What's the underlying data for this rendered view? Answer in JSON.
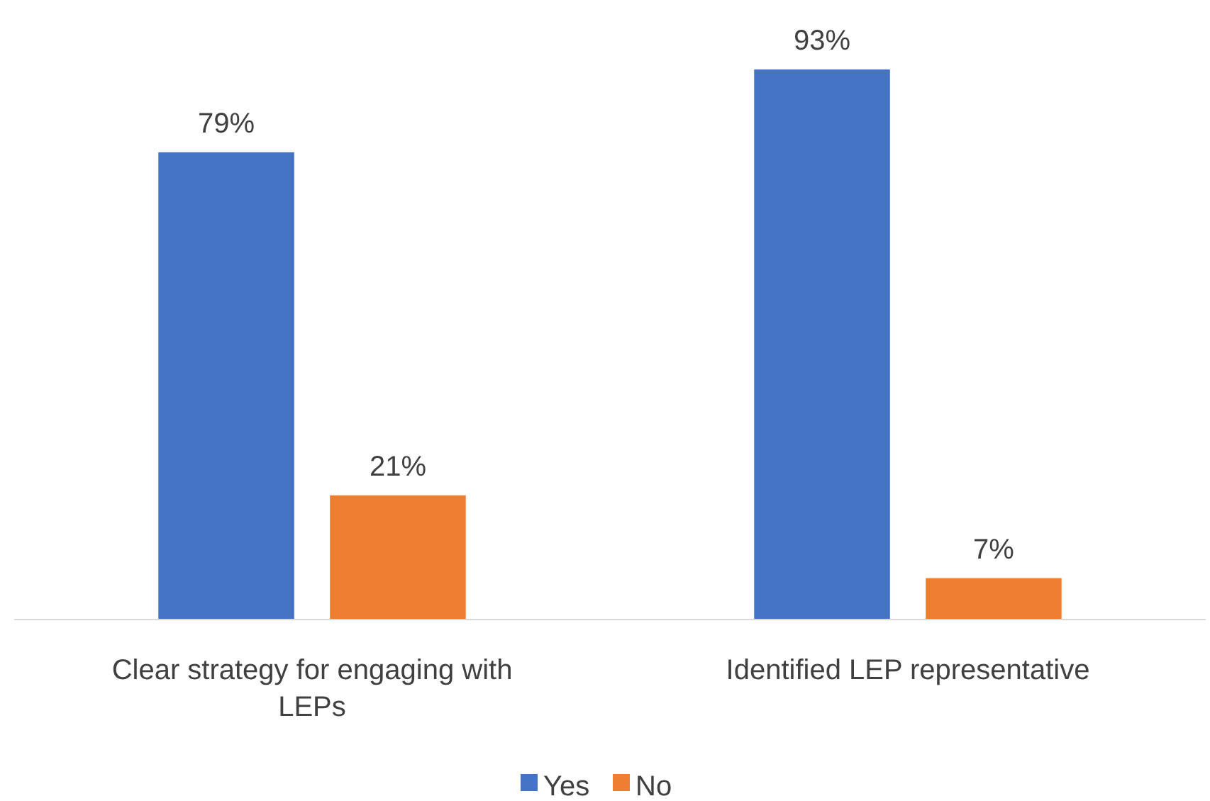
{
  "chart_data": {
    "type": "bar",
    "categories": [
      "Clear strategy for engaging with LEPs",
      "Identified LEP representative"
    ],
    "series": [
      {
        "name": "Yes",
        "color": "#4472c4",
        "values": [
          79,
          93
        ],
        "value_labels": [
          "79%",
          "93%"
        ]
      },
      {
        "name": "No",
        "color": "#ed7d31",
        "values": [
          21,
          7
        ],
        "value_labels": [
          "21%",
          "7%"
        ]
      }
    ],
    "legend": "bottom"
  }
}
